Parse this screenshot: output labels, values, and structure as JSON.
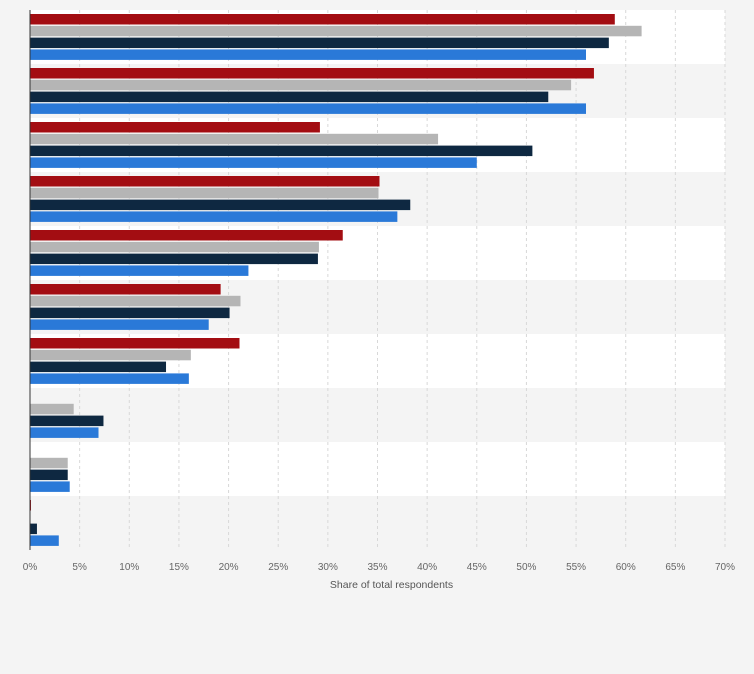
{
  "colors": {
    "background": "#f4f4f4",
    "plot_band_light": "#ffffff",
    "plot_band_dark": "#f4f4f4",
    "gridline": "#d8d8d8",
    "axis_line": "#333333"
  },
  "chart_data": {
    "type": "bar",
    "orientation": "horizontal",
    "title": "",
    "xlabel": "Share of total respondents",
    "ylabel": "",
    "xlim": [
      0,
      70
    ],
    "x_ticks": [
      "0%",
      "5%",
      "10%",
      "15%",
      "20%",
      "25%",
      "30%",
      "35%",
      "40%",
      "45%",
      "50%",
      "55%",
      "60%",
      "65%",
      "70%"
    ],
    "grid": true,
    "legend": "none",
    "category_count": 10,
    "series": [
      {
        "color": "#a30d12",
        "values": [
          58.9,
          56.8,
          29.2,
          35.2,
          31.5,
          19.2,
          21.1,
          null,
          null,
          0.1
        ]
      },
      {
        "color": "#b5b5b5",
        "values": [
          61.6,
          54.5,
          41.1,
          35.1,
          29.1,
          21.2,
          16.2,
          4.4,
          3.8,
          null
        ]
      },
      {
        "color": "#0e2841",
        "values": [
          58.3,
          52.2,
          50.6,
          38.3,
          29.0,
          20.1,
          13.7,
          7.4,
          3.8,
          0.7
        ]
      },
      {
        "color": "#2a79d8",
        "values": [
          56.0,
          56.0,
          45.0,
          37.0,
          22.0,
          18.0,
          16.0,
          6.9,
          4.0,
          2.9
        ]
      }
    ]
  }
}
